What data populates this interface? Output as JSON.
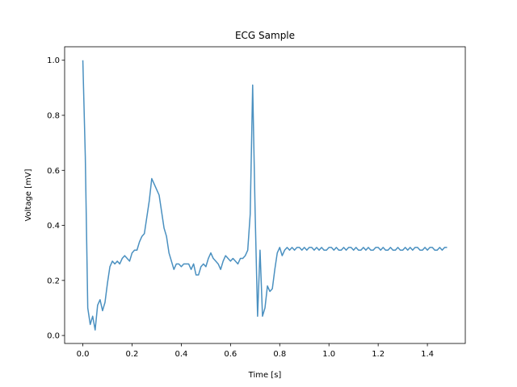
{
  "chart_data": {
    "type": "line",
    "title": "ECG Sample",
    "x_label": "Time [s]",
    "y_label": "Voltage [mV]",
    "color": "#4a90c0",
    "x": [
      0,
      0.01,
      0.02,
      0.03,
      0.04,
      0.05,
      0.06,
      0.07,
      0.08,
      0.09,
      0.1,
      0.11,
      0.12,
      0.13,
      0.14,
      0.15,
      0.16,
      0.17,
      0.18,
      0.19,
      0.2,
      0.21,
      0.22,
      0.23,
      0.24,
      0.25,
      0.26,
      0.27,
      0.28,
      0.29,
      0.3,
      0.31,
      0.32,
      0.33,
      0.34,
      0.35,
      0.36,
      0.37,
      0.38,
      0.39,
      0.4,
      0.41,
      0.42,
      0.43,
      0.44,
      0.45,
      0.46,
      0.47,
      0.48,
      0.49,
      0.5,
      0.51,
      0.52,
      0.53,
      0.54,
      0.55,
      0.56,
      0.57,
      0.58,
      0.59,
      0.6,
      0.61,
      0.62,
      0.63,
      0.64,
      0.65,
      0.66,
      0.67,
      0.68,
      0.69,
      0.7,
      0.71,
      0.72,
      0.73,
      0.74,
      0.75,
      0.76,
      0.77,
      0.78,
      0.79,
      0.8,
      0.81,
      0.82,
      0.83,
      0.84,
      0.85,
      0.86,
      0.87,
      0.88,
      0.89,
      0.9,
      0.91,
      0.92,
      0.93,
      0.94,
      0.95,
      0.96,
      0.97,
      0.98,
      0.99,
      1,
      1.01,
      1.02,
      1.03,
      1.04,
      1.05,
      1.06,
      1.07,
      1.08,
      1.09,
      1.1,
      1.11,
      1.12,
      1.13,
      1.14,
      1.15,
      1.16,
      1.17,
      1.18,
      1.19,
      1.2,
      1.21,
      1.22,
      1.23,
      1.24,
      1.25,
      1.26,
      1.27,
      1.28,
      1.29,
      1.3,
      1.31,
      1.32,
      1.33,
      1.34,
      1.35,
      1.36,
      1.37,
      1.38,
      1.39,
      1.4,
      1.41,
      1.42,
      1.43,
      1.44,
      1.45,
      1.46,
      1.47,
      1.48
    ],
    "values": [
      1.0,
      0.65,
      0.1,
      0.04,
      0.07,
      0.02,
      0.11,
      0.13,
      0.09,
      0.12,
      0.19,
      0.25,
      0.27,
      0.26,
      0.27,
      0.26,
      0.28,
      0.29,
      0.28,
      0.27,
      0.3,
      0.31,
      0.31,
      0.34,
      0.36,
      0.37,
      0.43,
      0.49,
      0.57,
      0.55,
      0.53,
      0.51,
      0.45,
      0.39,
      0.36,
      0.3,
      0.27,
      0.24,
      0.26,
      0.26,
      0.25,
      0.26,
      0.26,
      0.26,
      0.24,
      0.26,
      0.22,
      0.22,
      0.25,
      0.26,
      0.25,
      0.28,
      0.3,
      0.28,
      0.27,
      0.26,
      0.24,
      0.27,
      0.29,
      0.28,
      0.27,
      0.28,
      0.27,
      0.26,
      0.28,
      0.28,
      0.29,
      0.31,
      0.44,
      0.91,
      0.45,
      0.07,
      0.31,
      0.07,
      0.1,
      0.18,
      0.16,
      0.17,
      0.24,
      0.3,
      0.32,
      0.29,
      0.31,
      0.32,
      0.31,
      0.32,
      0.31,
      0.32,
      0.32,
      0.31,
      0.32,
      0.31,
      0.32,
      0.32,
      0.31,
      0.32,
      0.31,
      0.32,
      0.31,
      0.31,
      0.32,
      0.32,
      0.31,
      0.32,
      0.31,
      0.31,
      0.32,
      0.31,
      0.32,
      0.32,
      0.31,
      0.32,
      0.31,
      0.31,
      0.32,
      0.31,
      0.32,
      0.31,
      0.31,
      0.32,
      0.32,
      0.31,
      0.32,
      0.31,
      0.31,
      0.32,
      0.31,
      0.31,
      0.32,
      0.31,
      0.31,
      0.32,
      0.31,
      0.32,
      0.31,
      0.32,
      0.32,
      0.31,
      0.31,
      0.32,
      0.31,
      0.32,
      0.32,
      0.31,
      0.31,
      0.32,
      0.31,
      0.32,
      0.32
    ],
    "xlim": [
      -0.074,
      1.554
    ],
    "ylim": [
      -0.029,
      1.049
    ],
    "xticks": [
      {
        "value": 0,
        "label": "0.0"
      },
      0.2,
      0.4,
      0.6,
      0.8,
      {
        "value": 1,
        "label": "1.0"
      },
      1.2,
      1.4
    ],
    "yticks": [
      {
        "value": 0,
        "label": "0.0"
      },
      0.2,
      0.4,
      0.6,
      0.8,
      {
        "value": 1,
        "label": "1.0"
      }
    ]
  }
}
